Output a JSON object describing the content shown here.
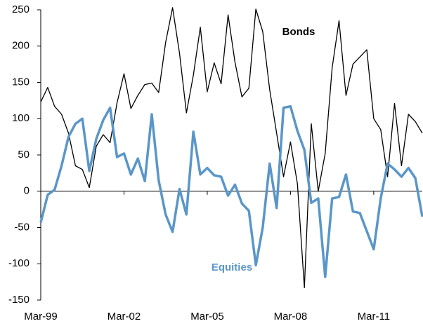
{
  "chart_data": {
    "type": "line",
    "categories": [
      "Mar-99",
      null,
      null,
      null,
      null,
      null,
      null,
      null,
      null,
      null,
      null,
      null,
      "Mar-02",
      null,
      null,
      null,
      null,
      null,
      null,
      null,
      null,
      null,
      null,
      null,
      "Mar-05",
      null,
      null,
      null,
      null,
      null,
      null,
      null,
      null,
      null,
      null,
      null,
      "Mar-08",
      null,
      null,
      null,
      null,
      null,
      null,
      null,
      null,
      null,
      null,
      null,
      "Mar-11",
      null,
      null,
      null,
      null,
      null,
      null,
      null
    ],
    "series": [
      {
        "name": "Bonds",
        "color": "#000000",
        "values": [
          123,
          143,
          117,
          106,
          80,
          35,
          30,
          5,
          62,
          78,
          67,
          122,
          162,
          114,
          132,
          147,
          149,
          136,
          205,
          253,
          190,
          108,
          160,
          226,
          137,
          177,
          148,
          243,
          178,
          130,
          142,
          251,
          220,
          140,
          80,
          20,
          68,
          10,
          -133,
          93,
          0,
          52,
          170,
          235,
          132,
          175,
          185,
          195,
          100,
          85,
          20,
          121,
          35,
          106,
          96,
          80
        ]
      },
      {
        "name": "Equities",
        "color": "#5a96c8",
        "values": [
          -43,
          -5,
          2,
          35,
          75,
          93,
          100,
          28,
          72,
          98,
          115,
          47,
          52,
          23,
          45,
          14,
          106,
          15,
          -32,
          -56,
          3,
          -32,
          82,
          23,
          32,
          22,
          20,
          -6,
          9,
          -17,
          -27,
          -102,
          -50,
          38,
          -23,
          115,
          117,
          83,
          57,
          -16,
          -10,
          -118,
          -10,
          -8,
          23,
          -28,
          -30,
          -55,
          -80,
          -10,
          38,
          30,
          20,
          32,
          18,
          -35
        ]
      }
    ],
    "ylim": [
      -150,
      250
    ],
    "yticks": [
      -150,
      -100,
      -50,
      0,
      50,
      100,
      150,
      200,
      250
    ],
    "grid": false
  }
}
